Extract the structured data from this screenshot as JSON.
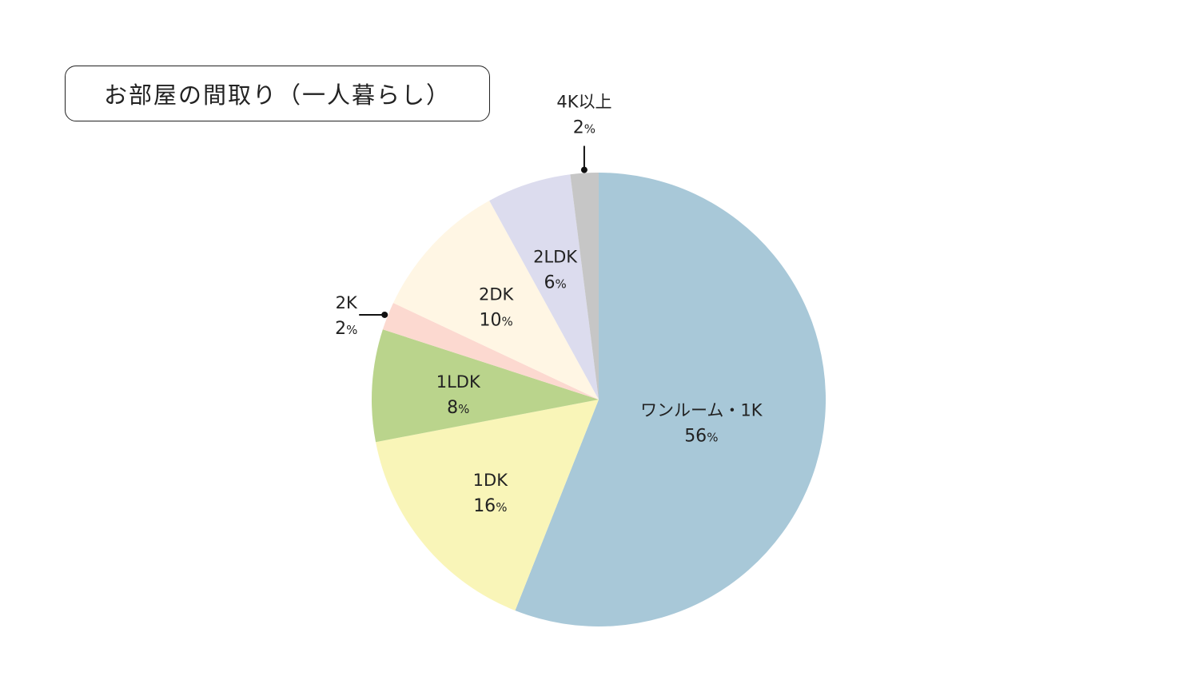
{
  "title": "お部屋の間取り（一人暮らし）",
  "chart_data": {
    "type": "pie",
    "title": "お部屋の間取り（一人暮らし）",
    "start_angle": "12 o'clock",
    "direction": "clockwise",
    "legend": "none",
    "slices": [
      {
        "label": "ワンルーム・1K",
        "value": 56,
        "value_label": "56",
        "color": "#a8c8d8",
        "label_position": "inside"
      },
      {
        "label": "1DK",
        "value": 16,
        "value_label": "16",
        "color": "#f9f5b8",
        "label_position": "inside"
      },
      {
        "label": "1LDK",
        "value": 8,
        "value_label": "8",
        "color": "#bad48c",
        "label_position": "inside"
      },
      {
        "label": "2K",
        "value": 2,
        "value_label": "2",
        "color": "#fcd9d0",
        "label_position": "outside-left"
      },
      {
        "label": "2DK",
        "value": 10,
        "value_label": "10",
        "color": "#fff6e4",
        "label_position": "inside"
      },
      {
        "label": "2LDK",
        "value": 6,
        "value_label": "6",
        "color": "#dcdcee",
        "label_position": "inside"
      },
      {
        "label": "4K以上",
        "value": 2,
        "value_label": "2",
        "color": "#c6c6c6",
        "label_position": "outside-top"
      }
    ],
    "unit": "%"
  }
}
